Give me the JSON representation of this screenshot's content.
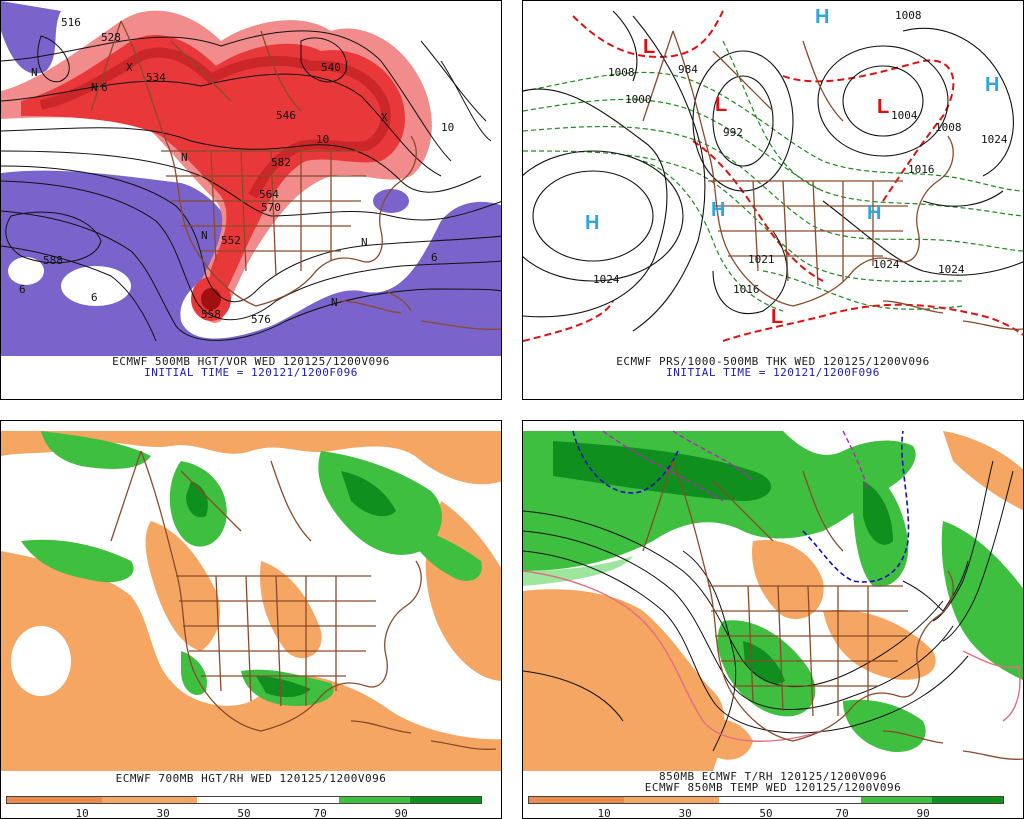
{
  "panels": {
    "top_left": {
      "caption_line1": "ECMWF 500MB HGT/VOR WED 120125/1200V096",
      "caption_line2": "INITIAL TIME = 120121/1200F096",
      "contour_labels": [
        "552",
        "564",
        "576",
        "588",
        "582",
        "558",
        "546",
        "534",
        "570",
        "540",
        "528",
        "516"
      ],
      "vorticity_labels": [
        "N",
        "N",
        "N",
        "N",
        "N",
        "N",
        "X",
        "X",
        "10",
        "10",
        "6",
        "6",
        "6",
        "6"
      ]
    },
    "top_right": {
      "caption_line1": "ECMWF PRS/1000-500MB THK WED 120125/1200V096",
      "caption_line2": "INITIAL TIME = 120121/1200F096",
      "isobar_labels": [
        "1008",
        "1000",
        "1024",
        "1024",
        "1004",
        "1008",
        "1016",
        "1024",
        "1024",
        "1016",
        "1021",
        "992",
        "984",
        "1008"
      ],
      "pressure_centers": [
        "H",
        "H",
        "H",
        "H",
        "H",
        "L",
        "L",
        "L",
        "L"
      ]
    },
    "bottom_left": {
      "caption_line1": "ECMWF 700MB HGT/RH WED 120125/1200V096",
      "colorbar_ticks": [
        "10",
        "30",
        "50",
        "70",
        "90"
      ]
    },
    "bottom_right": {
      "caption_line1": "850MB ECMWF T/RH 120125/1200V096",
      "caption_line2": "ECMWF 850MB TEMP WED 120125/1200V096",
      "colorbar_ticks": [
        "10",
        "30",
        "50",
        "70",
        "90"
      ]
    }
  },
  "colors": {
    "dry_orange": "#f5a662",
    "dry_orange_dark": "#ec8a4a",
    "moist_green": "#3fbf3f",
    "moist_green_dark": "#0e8f1e",
    "moist_green_light": "#9ee59e",
    "vort_red": "#e8383a",
    "vort_red_light": "#f28c8c",
    "vort_purple": "#7a64cc",
    "map_brown": "#8a4a2a",
    "contour_black": "#111111",
    "thickness_green": "#1f8a1f",
    "thickness_red": "#e01010",
    "high_blue": "#2ea6e0",
    "low_red": "#e01010",
    "temp_magenta": "#c020c0",
    "temp_blue": "#1010c0",
    "temp_pink": "#e07080"
  }
}
